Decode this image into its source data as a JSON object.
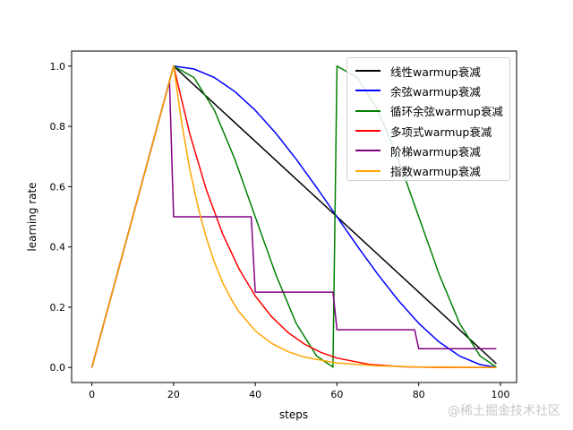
{
  "chart_data": {
    "type": "line",
    "title": "",
    "xlabel": "steps",
    "ylabel": "learning rate",
    "xlim": [
      -4.95,
      103.95
    ],
    "ylim": [
      -0.05,
      1.05
    ],
    "xticks": [
      0,
      20,
      40,
      60,
      80,
      100
    ],
    "yticks": [
      "0.0",
      "0.2",
      "0.4",
      "0.6",
      "0.8",
      "1.0"
    ],
    "grid": false,
    "legend_position": "top-right",
    "series": [
      {
        "name": "线性warmup衰减",
        "color": "#000000",
        "x": [
          0,
          20,
          99
        ],
        "y": [
          0,
          1,
          0.0125
        ]
      },
      {
        "name": "余弦warmup衰减",
        "color": "#0000ff",
        "x": [
          0,
          20,
          25,
          30,
          35,
          40,
          45,
          50,
          55,
          60,
          65,
          70,
          75,
          80,
          85,
          90,
          95,
          99
        ],
        "y": [
          0,
          1,
          0.9904,
          0.9619,
          0.9157,
          0.8536,
          0.7778,
          0.6913,
          0.5975,
          0.5,
          0.4025,
          0.3087,
          0.2222,
          0.1464,
          0.0843,
          0.0381,
          0.0096,
          0.0004
        ]
      },
      {
        "name": "循环余弦warmup衰减",
        "color": "#008000",
        "x": [
          0,
          20,
          25,
          30,
          35,
          40,
          45,
          50,
          55,
          59,
          60,
          65,
          70,
          75,
          80,
          85,
          90,
          95,
          99
        ],
        "y": [
          0,
          1,
          0.9619,
          0.8536,
          0.6913,
          0.5,
          0.3087,
          0.1464,
          0.0381,
          0.0015,
          1,
          0.9619,
          0.8536,
          0.6913,
          0.5,
          0.3087,
          0.1464,
          0.0381,
          0.0015
        ]
      },
      {
        "name": "多项式warmup衰减",
        "color": "#ff0000",
        "x": [
          0,
          20,
          24,
          28,
          32,
          36,
          40,
          44,
          48,
          52,
          56,
          60,
          68,
          76,
          84,
          99
        ],
        "y": [
          0,
          1,
          0.7738,
          0.5905,
          0.4437,
          0.3277,
          0.2373,
          0.1681,
          0.116,
          0.0778,
          0.0503,
          0.0313,
          0.0102,
          0.0024,
          0.0003,
          0
        ]
      },
      {
        "name": "阶梯warmup衰减",
        "color": "#800080",
        "x": [
          0,
          19,
          20,
          39,
          40,
          59,
          60,
          79,
          80,
          99
        ],
        "y": [
          0,
          0.95,
          0.5,
          0.5,
          0.25,
          0.25,
          0.125,
          0.125,
          0.0625,
          0.0625
        ]
      },
      {
        "name": "指数warmup衰减",
        "color": "#ffa500",
        "x": [
          0,
          20,
          22,
          24,
          26,
          28,
          30,
          32,
          34,
          36,
          40,
          44,
          48,
          52,
          60,
          70,
          80,
          99
        ],
        "y": [
          0,
          1,
          0.81,
          0.6561,
          0.5314,
          0.4305,
          0.3487,
          0.2824,
          0.2288,
          0.1853,
          0.1216,
          0.0798,
          0.0523,
          0.0343,
          0.0148,
          0.0052,
          0.0018,
          0.0002
        ]
      }
    ]
  },
  "watermark": "@稀土掘金技术社区"
}
